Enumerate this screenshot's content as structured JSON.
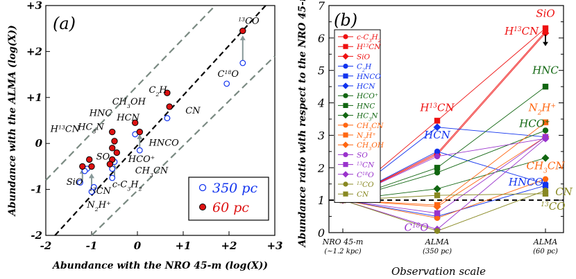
{
  "chart_data": [
    {
      "panel": "(a)",
      "type": "scatter",
      "xlabel": "Abundance with the NRO 45-m (log(X))",
      "ylabel": "Abundance with the ALMA (log(X))",
      "xlim": [
        -2,
        3
      ],
      "ylim": [
        -2,
        3
      ],
      "xtick_values": [
        -2,
        -1,
        0,
        1,
        2,
        3
      ],
      "xtick_labels": [
        "-2",
        "-1",
        "0",
        "+1",
        "+2",
        "+3"
      ],
      "ytick_values": [
        -2,
        -1,
        0,
        1,
        2,
        3
      ],
      "ytick_labels": [
        "-2",
        "-1",
        "0",
        "+1",
        "+2",
        "+3"
      ],
      "lines": [
        {
          "name": "one-to-one",
          "style": "black dashed",
          "points": [
            [
              -1.8,
              -2.0
            ],
            [
              2.8,
              3.0
            ]
          ]
        },
        {
          "name": "upper-band",
          "style": "gray dashed",
          "points": [
            [
              -2.0,
              -0.8
            ],
            [
              1.7,
              3.0
            ]
          ]
        },
        {
          "name": "lower-band",
          "style": "gray dashed",
          "points": [
            [
              -1.0,
              -2.0
            ],
            [
              3.0,
              1.9
            ]
          ]
        }
      ],
      "legend": {
        "position": "bottom-right",
        "entries": [
          {
            "label": "350 pc",
            "marker": "open-blue-circle"
          },
          {
            "label": "60 pc",
            "marker": "filled-red-circle"
          }
        ]
      },
      "series": [
        {
          "name": "350 pc",
          "points": [
            {
              "molecule": "13CO",
              "x": 2.3,
              "y": 1.75
            },
            {
              "molecule": "C18O",
              "x": 1.95,
              "y": 1.3
            },
            {
              "molecule": "C2H",
              "x": 0.65,
              "y": 0.55
            },
            {
              "molecule": "CN",
              "x": 0.65,
              "y": 0.55
            },
            {
              "molecule": "HNCO",
              "x": 0.05,
              "y": -0.15
            },
            {
              "molecule": "HCN",
              "x": -0.05,
              "y": 0.2
            },
            {
              "molecule": "HCO+",
              "x": -0.55,
              "y": -0.55
            },
            {
              "molecule": "CH3CN",
              "x": -0.5,
              "y": -0.4
            },
            {
              "molecule": "SiO",
              "x": -1.25,
              "y": -0.85
            },
            {
              "molecule": "13CN",
              "x": -0.55,
              "y": -0.75
            },
            {
              "molecule": "c-C3H2",
              "x": -0.95,
              "y": -0.95
            },
            {
              "molecule": "N2H+",
              "x": -1.0,
              "y": -1.05
            },
            {
              "molecule": "HC3N",
              "x": -1.1,
              "y": -0.55
            },
            {
              "molecule": "H13CN",
              "x": -1.15,
              "y": -0.6
            }
          ]
        },
        {
          "name": "60 pc",
          "points": [
            {
              "molecule": "13CO",
              "x": 2.3,
              "y": 2.45
            },
            {
              "molecule": "C2H",
              "x": 0.65,
              "y": 1.1
            },
            {
              "molecule": "CN",
              "x": 0.7,
              "y": 0.8
            },
            {
              "molecule": "CH3OH",
              "x": -0.05,
              "y": 0.45
            },
            {
              "molecule": "HCN",
              "x": 0.05,
              "y": 0.25
            },
            {
              "molecule": "HNC",
              "x": -0.55,
              "y": 0.25
            },
            {
              "molecule": "HC3N",
              "x": -0.5,
              "y": 0.05
            },
            {
              "molecule": "HNC-2",
              "x": -0.55,
              "y": -0.1
            },
            {
              "molecule": "HNCO",
              "x": -0.45,
              "y": -0.2
            },
            {
              "molecule": "SO",
              "x": -0.55,
              "y": -0.35
            },
            {
              "molecule": "CH3CN",
              "x": -0.6,
              "y": -0.45
            },
            {
              "molecule": "H13CN",
              "x": -1.05,
              "y": -0.35
            },
            {
              "molecule": "SiO",
              "x": -1.2,
              "y": -0.5
            },
            {
              "molecule": "c-C3H2",
              "x": -1.0,
              "y": -0.5
            }
          ]
        }
      ],
      "arrows": [
        {
          "x": 2.3,
          "from": 1.75,
          "to": 2.35
        },
        {
          "x": -0.5,
          "from": -0.75,
          "to": -0.45
        },
        {
          "x": -1.0,
          "from": -1.05,
          "to": -0.65
        },
        {
          "x": 0.05,
          "from": -0.1,
          "to": 0.2
        },
        {
          "x": -1.2,
          "from": -0.85,
          "to": -0.55
        }
      ],
      "annotations": [
        {
          "text": "13CO",
          "x": 2.2,
          "y": 2.6
        },
        {
          "text": "C18O",
          "x": 1.75,
          "y": 1.45
        },
        {
          "text": "C2H",
          "x": 0.25,
          "y": 1.1
        },
        {
          "text": "CN",
          "x": 1.05,
          "y": 0.65
        },
        {
          "text": "CH3OH",
          "x": -0.55,
          "y": 0.85
        },
        {
          "text": "HCN",
          "x": -0.45,
          "y": 0.5
        },
        {
          "text": "HNC",
          "x": -1.05,
          "y": 0.6
        },
        {
          "text": "HC3N",
          "x": -1.3,
          "y": 0.3
        },
        {
          "text": "H13CN",
          "x": -1.9,
          "y": 0.25
        },
        {
          "text": "HNCO",
          "x": 0.25,
          "y": -0.05
        },
        {
          "text": "SO",
          "x": -0.9,
          "y": -0.35
        },
        {
          "text": "HCO+",
          "x": -0.2,
          "y": -0.4
        },
        {
          "text": "CH3CN",
          "x": -0.05,
          "y": -0.65
        },
        {
          "text": "c-C3H2",
          "x": -0.55,
          "y": -0.95
        },
        {
          "text": "13CN",
          "x": -1.05,
          "y": -1.1
        },
        {
          "text": "SiO",
          "x": -1.55,
          "y": -0.9
        },
        {
          "text": "N2H+",
          "x": -1.1,
          "y": -1.4
        }
      ]
    },
    {
      "panel": "(b)",
      "type": "line",
      "xlabel": "Observation scale",
      "ylabel": "Abundance ratio with respect to the NRO 45-m",
      "categories": [
        "NRO 45-m",
        "ALMA",
        "ALMA"
      ],
      "category_sublabels": [
        "(~1.2 kpc)",
        "(350 pc)",
        "(60 pc)"
      ],
      "ylim": [
        0,
        7
      ],
      "ytick_values": [
        0,
        1,
        2,
        3,
        4,
        5,
        6,
        7
      ],
      "ytick_labels": [
        "0",
        "1",
        "2",
        "3",
        "4",
        "5",
        "6",
        "7"
      ],
      "reference_line": {
        "y": 1,
        "style": "black dashed"
      },
      "series": [
        {
          "name": "c-C3H2",
          "color": "#ee1111",
          "marker": "circle",
          "values": [
            1,
            2.45,
            6.2
          ]
        },
        {
          "name": "H13CN",
          "color": "#ee1111",
          "marker": "square",
          "values": [
            1,
            3.45,
            6.3
          ]
        },
        {
          "name": "SiO",
          "color": "#ee1111",
          "marker": "diamond",
          "values": [
            1,
            2.4,
            6.15
          ]
        },
        {
          "name": "C2H",
          "color": "#1133ee",
          "marker": "circle",
          "values": [
            1,
            2.5,
            1.5
          ]
        },
        {
          "name": "HNCO",
          "color": "#1133ee",
          "marker": "square",
          "values": [
            1,
            0.5,
            1.45
          ]
        },
        {
          "name": "HCN",
          "color": "#1133ee",
          "marker": "diamond",
          "values": [
            1,
            3.25,
            2.95
          ]
        },
        {
          "name": "HCO+",
          "color": "#116611",
          "marker": "circle",
          "values": [
            1,
            1.85,
            3.15
          ]
        },
        {
          "name": "HNC",
          "color": "#116611",
          "marker": "square",
          "values": [
            1,
            2.0,
            4.5
          ]
        },
        {
          "name": "HC3N",
          "color": "#116611",
          "marker": "diamond",
          "values": [
            1,
            1.35,
            2.3
          ]
        },
        {
          "name": "CH3CN",
          "color": "#ff6611",
          "marker": "circle",
          "values": [
            1,
            0.45,
            1.65
          ]
        },
        {
          "name": "N2H+",
          "color": "#ff6611",
          "marker": "square",
          "values": [
            1,
            0.85,
            3.4
          ]
        },
        {
          "name": "CH3OH",
          "color": "#ff6611",
          "marker": "diamond",
          "values": [
            1,
            0.8,
            2.95
          ]
        },
        {
          "name": "SO",
          "color": "#9933cc",
          "marker": "circle",
          "values": [
            1,
            2.35,
            2.9
          ]
        },
        {
          "name": "13CN",
          "color": "#9933cc",
          "marker": "square",
          "values": [
            1,
            0.6,
            2.95
          ]
        },
        {
          "name": "C18O",
          "color": "#9933cc",
          "marker": "diamond",
          "values": [
            1,
            0.1,
            2.9
          ]
        },
        {
          "name": "13CO",
          "color": "#888822",
          "marker": "circle",
          "values": [
            1,
            0.05,
            1.3
          ]
        },
        {
          "name": "CN",
          "color": "#888822",
          "marker": "square",
          "values": [
            1,
            1.15,
            1.2
          ]
        }
      ],
      "arrow": {
        "category_index": 2,
        "from": 6.1,
        "to": 5.75,
        "note": "SiO upper limit"
      },
      "annotations": [
        {
          "text": "SiO",
          "cat": 2.0,
          "y": 6.65,
          "color": "#ee1111"
        },
        {
          "text": "H13CN",
          "cat": 1.78,
          "y": 6.1,
          "color": "#ee1111"
        },
        {
          "text": "HNC",
          "cat": 2.0,
          "y": 4.9,
          "color": "#116611"
        },
        {
          "text": "N2H+",
          "cat": 1.97,
          "y": 3.75,
          "color": "#ff6611"
        },
        {
          "text": "HCO+",
          "cat": 1.9,
          "y": 3.25,
          "color": "#116611"
        },
        {
          "text": "CH3CN",
          "cat": 2.0,
          "y": 1.95,
          "color": "#ff6611"
        },
        {
          "text": "HNCO",
          "cat": 1.82,
          "y": 1.45,
          "color": "#1133ee"
        },
        {
          "text": "CN",
          "cat": 2.17,
          "y": 1.15,
          "color": "#888822"
        },
        {
          "text": "13CO",
          "cat": 2.07,
          "y": 0.7,
          "color": "#888822"
        },
        {
          "text": "H13CN",
          "cat": 1.0,
          "y": 3.75,
          "color": "#ee1111"
        },
        {
          "text": "HCN",
          "cat": 1.0,
          "y": 2.9,
          "color": "#1133ee"
        },
        {
          "text": "C18O",
          "cat": 0.78,
          "y": 0.05,
          "color": "#9933cc"
        }
      ]
    }
  ]
}
